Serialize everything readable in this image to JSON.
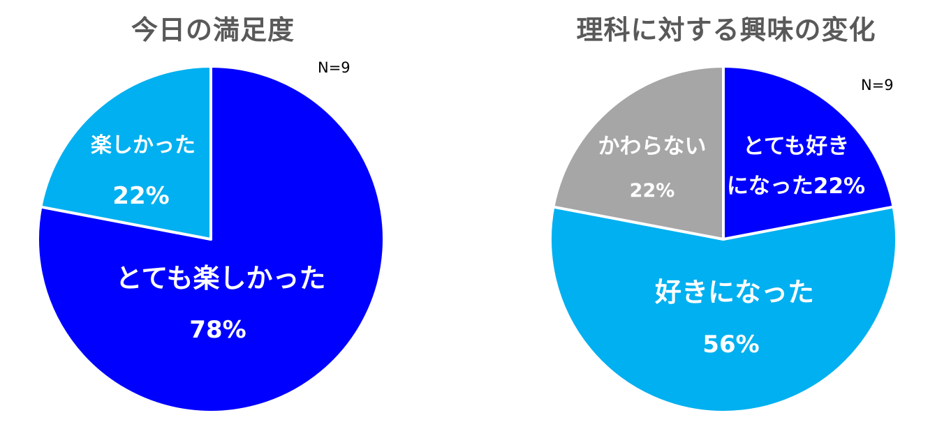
{
  "chart_data": [
    {
      "type": "pie",
      "title": "今日の満足度",
      "n_label": "N=9",
      "slices": [
        {
          "label_lines": [
            "とても楽しかった"
          ],
          "pct_text": "78%",
          "value": 78,
          "color": "#0000FF"
        },
        {
          "label_lines": [
            "楽しかった"
          ],
          "pct_text": "22%",
          "value": 22,
          "color": "#00B0F0"
        }
      ]
    },
    {
      "type": "pie",
      "title": "理科に対する興味の変化",
      "n_label": "N=9",
      "slices": [
        {
          "label_lines": [
            "とても好き",
            "になった22%"
          ],
          "pct_text": "",
          "value": 22,
          "color": "#0000FF"
        },
        {
          "label_lines": [
            "好きになった"
          ],
          "pct_text": "56%",
          "value": 56,
          "color": "#00B0F0"
        },
        {
          "label_lines": [
            "かわらない"
          ],
          "pct_text": "22%",
          "value": 22,
          "color": "#A6A6A6"
        }
      ]
    }
  ]
}
